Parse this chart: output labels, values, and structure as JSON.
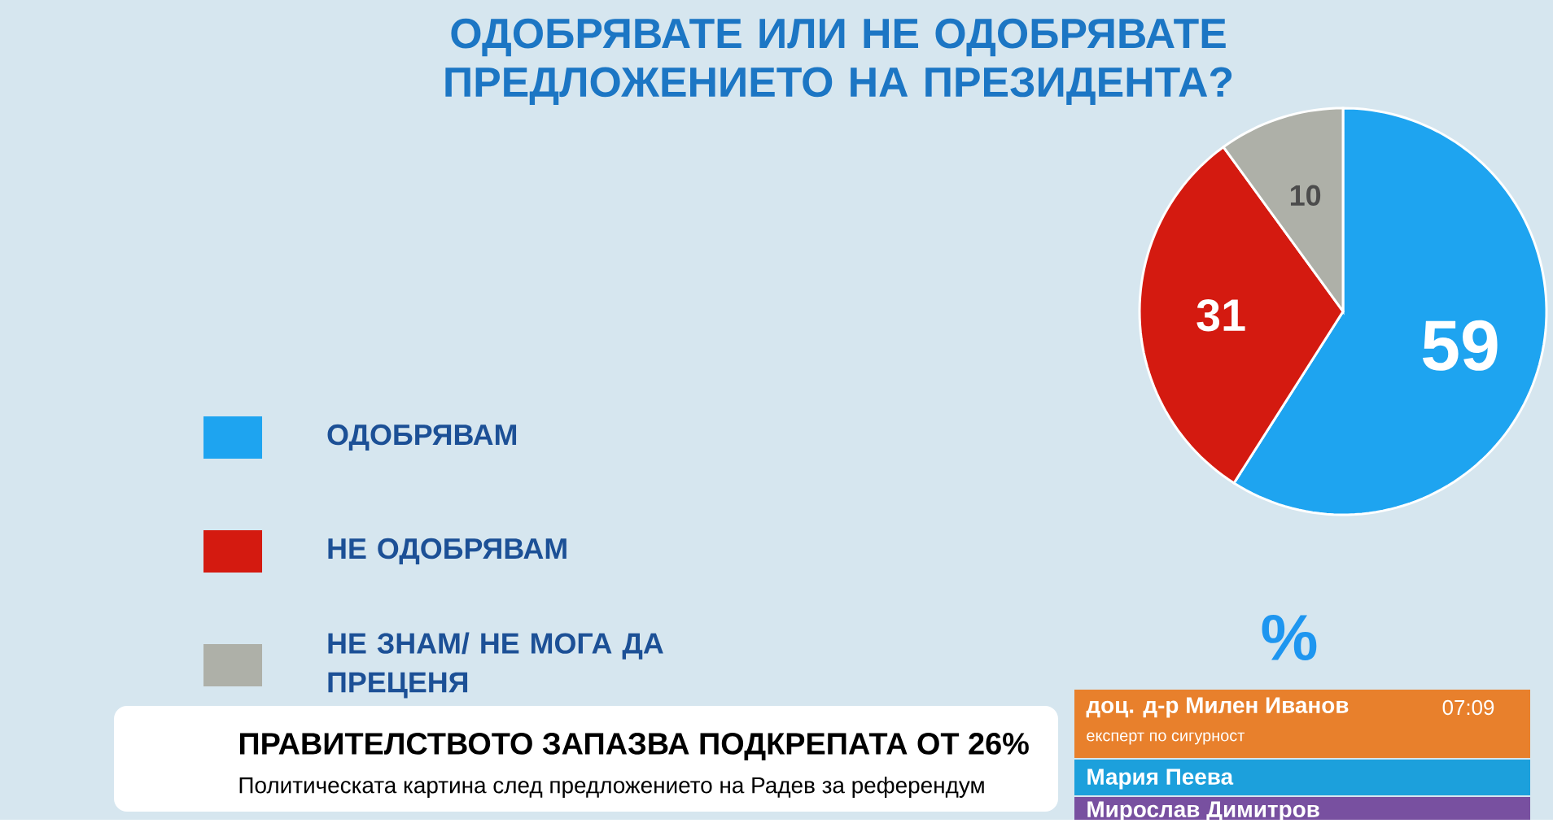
{
  "chart_data": {
    "type": "pie",
    "title": "ОДОБРЯВАТЕ ИЛИ НЕ ОДОБРЯВАТЕ ПРЕДЛОЖЕНИЕТО НА ПРЕЗИДЕНТА?",
    "categories": [
      "ОДОБРЯВАМ",
      "НЕ ОДОБРЯВАМ",
      "НЕ ЗНАМ/ НЕ МОГА ДА ПРЕЦЕНЯ"
    ],
    "values": [
      59,
      31,
      10
    ],
    "colors": [
      "#1ea4f0",
      "#d41a10",
      "#aeb0a8"
    ],
    "data_labels": true,
    "legend": "left",
    "annotations": [
      "%",
      "ПРАВИТЕЛСТВОТО ЗАПАЗВА ПОДКРЕПАТА ОТ 26%",
      "Политическата картина след предложението на Радев за референдум",
      "доц. д-р Милен Иванов",
      "експерт по сигурност",
      "07:09",
      "Мария Пеева",
      "Мирослав Димитров"
    ]
  }
}
